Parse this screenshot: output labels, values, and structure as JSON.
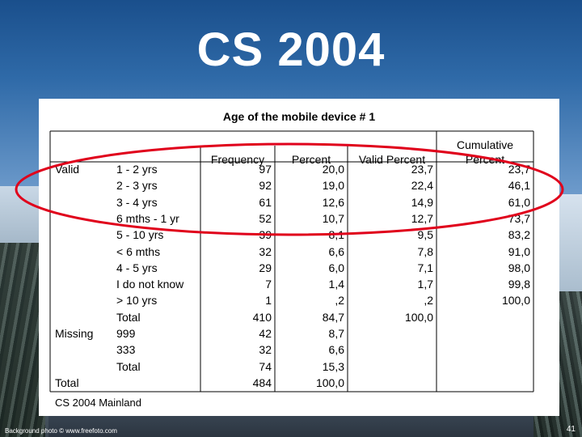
{
  "slide": {
    "title": "CS 2004",
    "credit": "Background photo © www.freefoto.com",
    "page_number": "41"
  },
  "table": {
    "title": "Age of the mobile device # 1",
    "headers": {
      "frequency": "Frequency",
      "percent": "Percent",
      "valid_percent": "Valid Percent",
      "cumulative_line1": "Cumulative",
      "cumulative_line2": "Percent"
    },
    "rows": [
      {
        "group": "Valid",
        "label": "1 - 2 yrs",
        "frequency": "97",
        "percent": "20,0",
        "valid_percent": "23,7",
        "cumulative": "23,7"
      },
      {
        "group": "",
        "label": "2 - 3 yrs",
        "frequency": "92",
        "percent": "19,0",
        "valid_percent": "22,4",
        "cumulative": "46,1"
      },
      {
        "group": "",
        "label": "3 - 4 yrs",
        "frequency": "61",
        "percent": "12,6",
        "valid_percent": "14,9",
        "cumulative": "61,0"
      },
      {
        "group": "",
        "label": "6 mths - 1 yr",
        "frequency": "52",
        "percent": "10,7",
        "valid_percent": "12,7",
        "cumulative": "73,7"
      },
      {
        "group": "",
        "label": "5 - 10 yrs",
        "frequency": "39",
        "percent": "8,1",
        "valid_percent": "9,5",
        "cumulative": "83,2"
      },
      {
        "group": "",
        "label": "< 6 mths",
        "frequency": "32",
        "percent": "6,6",
        "valid_percent": "7,8",
        "cumulative": "91,0"
      },
      {
        "group": "",
        "label": "4 - 5 yrs",
        "frequency": "29",
        "percent": "6,0",
        "valid_percent": "7,1",
        "cumulative": "98,0"
      },
      {
        "group": "",
        "label": "I do not know",
        "frequency": "7",
        "percent": "1,4",
        "valid_percent": "1,7",
        "cumulative": "99,8"
      },
      {
        "group": "",
        "label": "> 10 yrs",
        "frequency": "1",
        "percent": ",2",
        "valid_percent": ",2",
        "cumulative": "100,0"
      },
      {
        "group": "",
        "label": "Total",
        "frequency": "410",
        "percent": "84,7",
        "valid_percent": "100,0",
        "cumulative": ""
      },
      {
        "group": "Missing",
        "label": "999",
        "frequency": "42",
        "percent": "8,7",
        "valid_percent": "",
        "cumulative": ""
      },
      {
        "group": "",
        "label": "333",
        "frequency": "32",
        "percent": "6,6",
        "valid_percent": "",
        "cumulative": ""
      },
      {
        "group": "",
        "label": "Total",
        "frequency": "74",
        "percent": "15,3",
        "valid_percent": "",
        "cumulative": ""
      },
      {
        "group": "Total",
        "label": "",
        "frequency": "484",
        "percent": "100,0",
        "valid_percent": "",
        "cumulative": ""
      }
    ],
    "footer": "CS 2004 Mainland"
  },
  "annotation": {
    "color": "#e0001b"
  }
}
